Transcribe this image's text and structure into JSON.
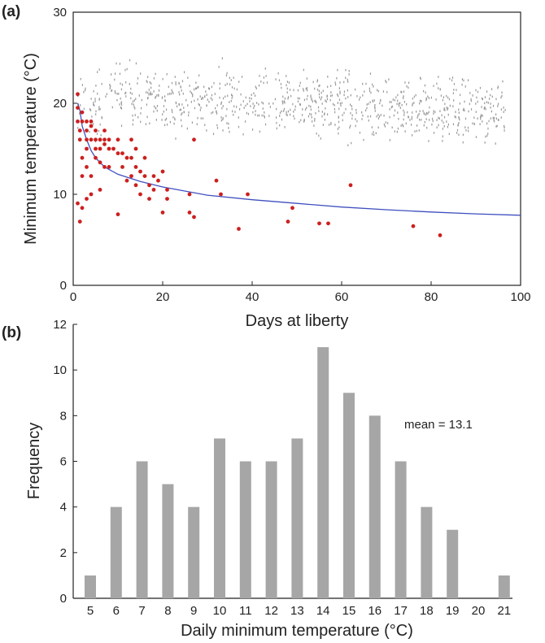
{
  "chart_data": [
    {
      "type": "scatter",
      "panel_label": "(a)",
      "xlabel": "Days at liberty",
      "ylabel": "Minimum temperature (°C)",
      "xlim": [
        0,
        100
      ],
      "ylim": [
        0,
        30
      ],
      "xticks": [
        0,
        20,
        40,
        60,
        80,
        100
      ],
      "yticks": [
        0,
        10,
        20,
        30
      ],
      "grid": false,
      "colors": {
        "background_points": "#9a9a9a",
        "highlight_points": "#cc1f1f",
        "curve": "#3f4fbf"
      },
      "series": [
        {
          "role": "highlight",
          "points": [
            [
              1,
              21
            ],
            [
              1,
              19.5
            ],
            [
              1,
              18
            ],
            [
              1.5,
              17
            ],
            [
              1.5,
              16
            ],
            [
              1,
              9
            ],
            [
              1.5,
              7
            ],
            [
              2,
              19
            ],
            [
              2,
              18
            ],
            [
              2,
              14
            ],
            [
              2,
              12
            ],
            [
              2,
              8.5
            ],
            [
              3,
              18
            ],
            [
              3,
              17
            ],
            [
              3,
              16
            ],
            [
              3,
              15
            ],
            [
              3,
              13
            ],
            [
              3,
              9.5
            ],
            [
              4,
              18
            ],
            [
              4,
              17.5
            ],
            [
              4,
              16
            ],
            [
              4,
              12
            ],
            [
              4,
              10
            ],
            [
              5,
              17
            ],
            [
              5,
              16
            ],
            [
              5,
              15
            ],
            [
              5,
              14
            ],
            [
              6,
              16
            ],
            [
              6,
              15
            ],
            [
              6,
              13.5
            ],
            [
              6,
              10.5
            ],
            [
              7,
              17
            ],
            [
              7,
              16
            ],
            [
              7,
              15.5
            ],
            [
              7,
              13
            ],
            [
              8,
              16
            ],
            [
              8,
              15
            ],
            [
              8,
              13
            ],
            [
              9,
              15
            ],
            [
              10,
              16
            ],
            [
              10,
              14.5
            ],
            [
              10,
              7.8
            ],
            [
              11,
              14.5
            ],
            [
              11,
              13
            ],
            [
              12,
              14
            ],
            [
              12,
              11.5
            ],
            [
              13,
              16
            ],
            [
              13,
              14
            ],
            [
              13,
              12
            ],
            [
              14,
              15
            ],
            [
              14,
              13
            ],
            [
              14,
              11
            ],
            [
              15,
              12.5
            ],
            [
              15,
              10
            ],
            [
              16,
              14
            ],
            [
              16,
              12
            ],
            [
              17,
              11
            ],
            [
              17,
              9.5
            ],
            [
              18,
              12
            ],
            [
              18,
              10.5
            ],
            [
              19,
              11.5
            ],
            [
              20,
              12.5
            ],
            [
              20,
              8
            ],
            [
              21,
              10.5
            ],
            [
              21,
              9.5
            ],
            [
              26,
              10
            ],
            [
              26,
              8
            ],
            [
              27,
              7.5
            ],
            [
              27,
              16
            ],
            [
              32,
              11.5
            ],
            [
              33,
              10
            ],
            [
              37,
              6.2
            ],
            [
              39,
              10
            ],
            [
              48,
              7
            ],
            [
              49,
              8.5
            ],
            [
              55,
              6.8
            ],
            [
              57,
              6.8
            ],
            [
              62,
              11
            ],
            [
              76,
              6.5
            ],
            [
              82,
              5.5
            ]
          ]
        }
      ],
      "curve": {
        "role": "fit",
        "points": [
          [
            1,
            20
          ],
          [
            1.5,
            19.2
          ],
          [
            2,
            17.5
          ],
          [
            3,
            16
          ],
          [
            4,
            14.8
          ],
          [
            5,
            14
          ],
          [
            7,
            13
          ],
          [
            10,
            12.2
          ],
          [
            15,
            11.4
          ],
          [
            20,
            10.8
          ],
          [
            30,
            9.9
          ],
          [
            40,
            9.4
          ],
          [
            50,
            9
          ],
          [
            60,
            8.6
          ],
          [
            70,
            8.3
          ],
          [
            80,
            8.05
          ],
          [
            90,
            7.85
          ],
          [
            100,
            7.7
          ]
        ]
      }
    },
    {
      "type": "bar",
      "panel_label": "(b)",
      "xlabel": "Daily minimum temperature (°C)",
      "ylabel": "Frequency",
      "categories": [
        "5",
        "6",
        "7",
        "8",
        "9",
        "10",
        "11",
        "12",
        "13",
        "14",
        "15",
        "16",
        "17",
        "18",
        "19",
        "20",
        "21"
      ],
      "values": [
        1,
        4,
        6,
        5,
        4,
        7,
        6,
        6,
        7,
        11,
        9,
        8,
        6,
        4,
        3,
        0,
        1
      ],
      "ylim": [
        0,
        12
      ],
      "yticks": [
        0,
        2,
        4,
        6,
        8,
        10,
        12
      ],
      "annotation": "mean = 13.1",
      "grid": false,
      "colors": {
        "bars": "#a6a6a6"
      }
    }
  ]
}
